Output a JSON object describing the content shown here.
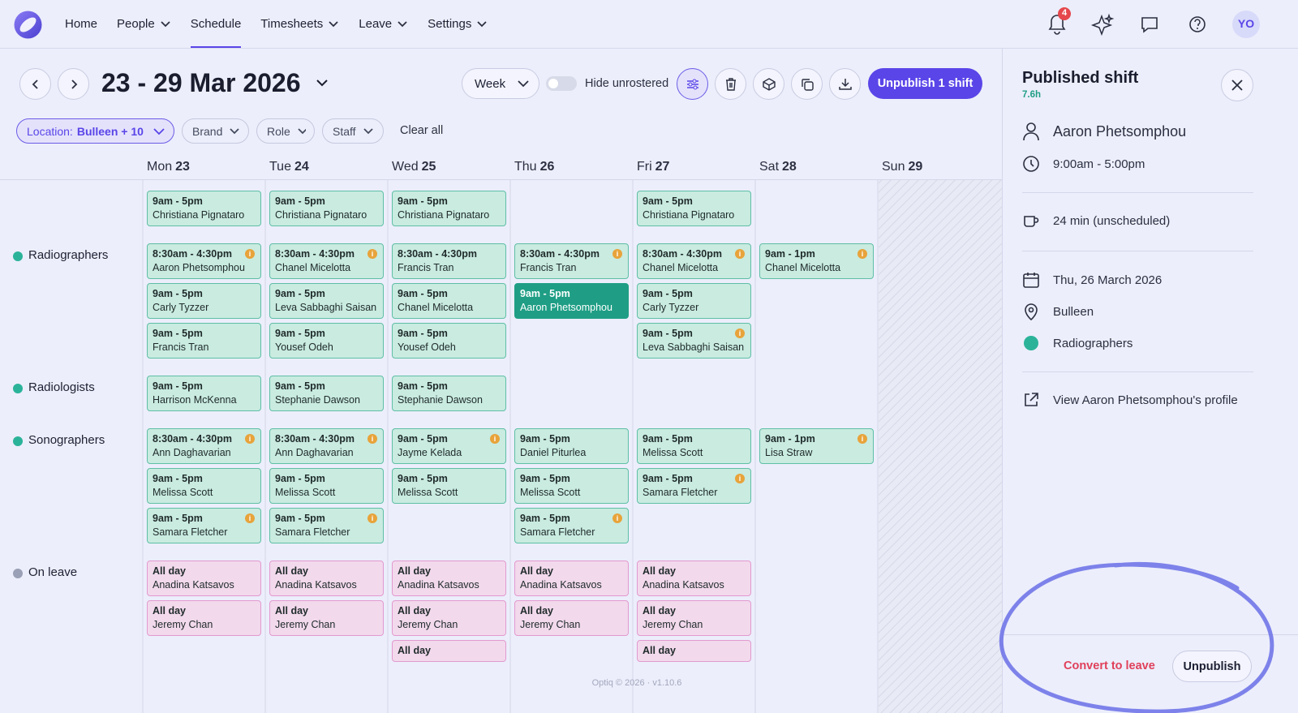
{
  "nav": {
    "items": [
      {
        "label": "Home"
      },
      {
        "label": "People",
        "menu": true
      },
      {
        "label": "Schedule",
        "active": true
      },
      {
        "label": "Timesheets",
        "menu": true
      },
      {
        "label": "Leave",
        "menu": true
      },
      {
        "label": "Settings",
        "menu": true
      }
    ],
    "notification_count": 4,
    "avatar": "YO"
  },
  "toolbar": {
    "date_range": "23 - 29 Mar 2026",
    "view": "Week",
    "toggle_label": "Hide unrostered",
    "primary_action": "Unpublish 1 shift"
  },
  "filters": {
    "location_prefix": "Location:",
    "location_value": "Bulleen + 10",
    "items": [
      "Brand",
      "Role",
      "Staff"
    ],
    "clear": "Clear all"
  },
  "days": [
    {
      "name": "Mon",
      "date": 23
    },
    {
      "name": "Tue",
      "date": 24
    },
    {
      "name": "Wed",
      "date": 25
    },
    {
      "name": "Thu",
      "date": 26
    },
    {
      "name": "Fri",
      "date": 27
    },
    {
      "name": "Sat",
      "date": 28
    },
    {
      "name": "Sun",
      "date": 29
    }
  ],
  "groups": [
    {
      "shifts": [
        [
          {
            "time": "9am - 5pm",
            "name": "Christiana Pignataro"
          }
        ],
        [
          {
            "time": "9am - 5pm",
            "name": "Christiana Pignataro"
          }
        ],
        [
          {
            "time": "9am - 5pm",
            "name": "Christiana Pignataro"
          }
        ],
        [],
        [
          {
            "time": "9am - 5pm",
            "name": "Christiana Pignataro"
          }
        ],
        [],
        []
      ]
    },
    {
      "label": "Radiographers",
      "color": "#2bb39a",
      "shifts": [
        [
          {
            "time": "8:30am - 4:30pm",
            "name": "Aaron Phetsomphou",
            "warning": true
          },
          {
            "time": "9am - 5pm",
            "name": "Carly Tyzzer"
          },
          {
            "time": "9am - 5pm",
            "name": "Francis Tran"
          }
        ],
        [
          {
            "time": "8:30am - 4:30pm",
            "name": "Chanel Micelotta",
            "warning": true
          },
          {
            "time": "9am - 5pm",
            "name": "Leva Sabbaghi Saisan"
          },
          {
            "time": "9am - 5pm",
            "name": "Yousef Odeh"
          }
        ],
        [
          {
            "time": "8:30am - 4:30pm",
            "name": "Francis Tran"
          },
          {
            "time": "9am - 5pm",
            "name": "Chanel Micelotta"
          },
          {
            "time": "9am - 5pm",
            "name": "Yousef Odeh"
          }
        ],
        [
          {
            "time": "8:30am - 4:30pm",
            "name": "Francis Tran",
            "warning": true
          },
          {
            "time": "9am - 5pm",
            "name": "Aaron Phetsomphou",
            "selected": true
          }
        ],
        [
          {
            "time": "8:30am - 4:30pm",
            "name": "Chanel Micelotta",
            "warning": true
          },
          {
            "time": "9am - 5pm",
            "name": "Carly Tyzzer"
          },
          {
            "time": "9am - 5pm",
            "name": "Leva Sabbaghi Saisan",
            "warning": true
          }
        ],
        [
          {
            "time": "9am - 1pm",
            "name": "Chanel Micelotta",
            "warning": true
          }
        ],
        []
      ]
    },
    {
      "label": "Radiologists",
      "color": "#2bb39a",
      "shifts": [
        [
          {
            "time": "9am - 5pm",
            "name": "Harrison McKenna"
          }
        ],
        [
          {
            "time": "9am - 5pm",
            "name": "Stephanie Dawson"
          }
        ],
        [
          {
            "time": "9am - 5pm",
            "name": "Stephanie Dawson"
          }
        ],
        [],
        [],
        [],
        []
      ]
    },
    {
      "label": "Sonographers",
      "color": "#2bb39a",
      "shifts": [
        [
          {
            "time": "8:30am - 4:30pm",
            "name": "Ann Daghavarian",
            "warning": true
          },
          {
            "time": "9am - 5pm",
            "name": "Melissa Scott"
          },
          {
            "time": "9am - 5pm",
            "name": "Samara Fletcher",
            "warning": true
          }
        ],
        [
          {
            "time": "8:30am - 4:30pm",
            "name": "Ann Daghavarian",
            "warning": true
          },
          {
            "time": "9am - 5pm",
            "name": "Melissa Scott"
          },
          {
            "time": "9am - 5pm",
            "name": "Samara Fletcher",
            "warning": true
          }
        ],
        [
          {
            "time": "9am - 5pm",
            "name": "Jayme Kelada",
            "warning": true
          },
          {
            "time": "9am - 5pm",
            "name": "Melissa Scott"
          }
        ],
        [
          {
            "time": "9am - 5pm",
            "name": "Daniel Piturlea"
          },
          {
            "time": "9am - 5pm",
            "name": "Melissa Scott"
          },
          {
            "time": "9am - 5pm",
            "name": "Samara Fletcher",
            "warning": true
          }
        ],
        [
          {
            "time": "9am - 5pm",
            "name": "Melissa Scott"
          },
          {
            "time": "9am - 5pm",
            "name": "Samara Fletcher",
            "warning": true
          }
        ],
        [
          {
            "time": "9am - 1pm",
            "name": "Lisa Straw",
            "warning": true
          }
        ],
        []
      ]
    },
    {
      "label": "On leave",
      "color": "#9aa0b5",
      "leave": true,
      "shifts": [
        [
          {
            "time": "All day",
            "name": "Anadina Katsavos"
          },
          {
            "time": "All day",
            "name": "Jeremy Chan"
          }
        ],
        [
          {
            "time": "All day",
            "name": "Anadina Katsavos"
          },
          {
            "time": "All day",
            "name": "Jeremy Chan"
          }
        ],
        [
          {
            "time": "All day",
            "name": "Anadina Katsavos"
          },
          {
            "time": "All day",
            "name": "Jeremy Chan"
          },
          {
            "time": "All day"
          }
        ],
        [
          {
            "time": "All day",
            "name": "Anadina Katsavos"
          },
          {
            "time": "All day",
            "name": "Jeremy Chan"
          }
        ],
        [
          {
            "time": "All day",
            "name": "Anadina Katsavos"
          },
          {
            "time": "All day",
            "name": "Jeremy Chan"
          },
          {
            "time": "All day"
          }
        ],
        [],
        []
      ]
    }
  ],
  "footer": "Optiq © 2026 · v1.10.6",
  "panel": {
    "title": "Published shift",
    "hours": "7.6h",
    "employee": "Aaron Phetsomphou",
    "time": "9:00am - 5:00pm",
    "break": "24 min (unscheduled)",
    "date": "Thu, 26 March 2026",
    "location": "Bulleen",
    "role": "Radiographers",
    "profile_link": "View Aaron Phetsomphou's profile",
    "secondary_action": "Convert to leave",
    "action": "Unpublish"
  }
}
